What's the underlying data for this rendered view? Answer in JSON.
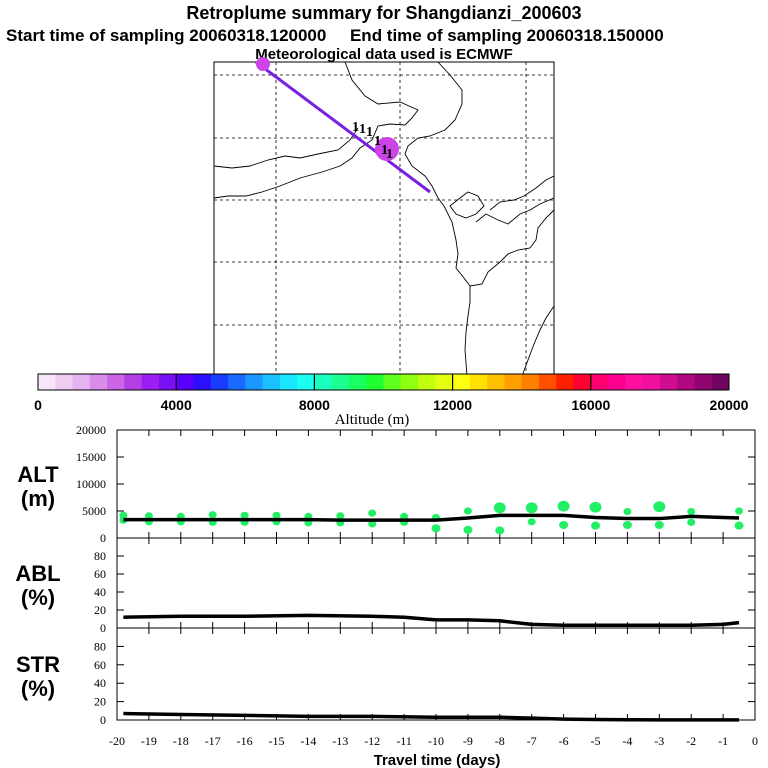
{
  "header": {
    "title": "Retroplume summary for Shangdianzi_200603",
    "start_time": "Start time of sampling 20060318.120000",
    "end_time": "End time of sampling 20060318.150000",
    "met_data": "Meteorological data used is ECMWF"
  },
  "chart_data": [
    {
      "type": "map",
      "name": "retroplume-map",
      "trajectory_color": "#7a1fe0",
      "marker_label": "1",
      "description_units": "plume centroid path toward station"
    },
    {
      "type": "colorbar",
      "name": "altitude-colorbar",
      "label": "Altitude (m)",
      "range": [
        0,
        20000
      ],
      "tick_labels": [
        "0",
        "4000",
        "8000",
        "12000",
        "16000",
        "20000"
      ],
      "colors": [
        "#f7e6f7",
        "#efcdf2",
        "#e5b3ef",
        "#d98de8",
        "#cc66e6",
        "#b23fe6",
        "#9a1ff0",
        "#7a0ff5",
        "#5a00ff",
        "#2a10ff",
        "#1a3cff",
        "#1a6aff",
        "#1a96ff",
        "#1ac0ff",
        "#1ae6ff",
        "#1afff0",
        "#1affc0",
        "#1aff90",
        "#1aff60",
        "#20ff30",
        "#60ff20",
        "#90ff10",
        "#c0ff10",
        "#e6ff10",
        "#ffff10",
        "#ffe000",
        "#ffc000",
        "#ffa000",
        "#ff8000",
        "#ff5000",
        "#ff2000",
        "#ff0030",
        "#ff0070",
        "#ff0090",
        "#ff10a0",
        "#ef10a0",
        "#d00c90",
        "#b00880",
        "#900670",
        "#700460"
      ]
    },
    {
      "type": "line",
      "name": "altitude-panel",
      "ylabel": "ALT\n(m)",
      "ylabel_lines": [
        "ALT",
        "(m)"
      ],
      "ylim": [
        0,
        20000
      ],
      "yticks": [
        "0",
        "5000",
        "10000",
        "15000",
        "20000"
      ],
      "x": [
        -19.8,
        -19,
        -18,
        -17,
        -16,
        -15,
        -14,
        -13,
        -12,
        -11,
        -10,
        -9,
        -8,
        -7,
        -6,
        -5,
        -4,
        -3,
        -2,
        -1,
        -0.5
      ],
      "y": [
        3400,
        3400,
        3400,
        3400,
        3400,
        3400,
        3400,
        3300,
        3300,
        3300,
        3300,
        3700,
        4200,
        4200,
        4200,
        3800,
        3600,
        3600,
        4000,
        3800,
        3700
      ],
      "points": [
        {
          "x": -19.8,
          "y": 3300
        },
        {
          "x": -19.8,
          "y": 4200
        },
        {
          "x": -19,
          "y": 3000
        },
        {
          "x": -19,
          "y": 4100
        },
        {
          "x": -18,
          "y": 3000
        },
        {
          "x": -18,
          "y": 4000
        },
        {
          "x": -17,
          "y": 2900
        },
        {
          "x": -17,
          "y": 4300
        },
        {
          "x": -16,
          "y": 2900
        },
        {
          "x": -16,
          "y": 4200
        },
        {
          "x": -15,
          "y": 3000
        },
        {
          "x": -15,
          "y": 4200
        },
        {
          "x": -14,
          "y": 2800
        },
        {
          "x": -14,
          "y": 4000
        },
        {
          "x": -13,
          "y": 2800
        },
        {
          "x": -13,
          "y": 4100
        },
        {
          "x": -12,
          "y": 2600
        },
        {
          "x": -12,
          "y": 4600
        },
        {
          "x": -11,
          "y": 2900
        },
        {
          "x": -11,
          "y": 4000
        },
        {
          "x": -10,
          "y": 1800
        },
        {
          "x": -10,
          "y": 3800
        },
        {
          "x": -9,
          "y": 1500
        },
        {
          "x": -9,
          "y": 5000
        },
        {
          "x": -8,
          "y": 1400
        },
        {
          "x": -8,
          "y": 5600
        },
        {
          "x": -7,
          "y": 3000
        },
        {
          "x": -7,
          "y": 5600
        },
        {
          "x": -6,
          "y": 2400
        },
        {
          "x": -6,
          "y": 5900
        },
        {
          "x": -5,
          "y": 2300
        },
        {
          "x": -5,
          "y": 5700
        },
        {
          "x": -4,
          "y": 2400
        },
        {
          "x": -4,
          "y": 4900
        },
        {
          "x": -3,
          "y": 2400
        },
        {
          "x": -3,
          "y": 5800
        },
        {
          "x": -2,
          "y": 2900
        },
        {
          "x": -2,
          "y": 4900
        },
        {
          "x": -0.5,
          "y": 2300
        },
        {
          "x": -0.5,
          "y": 5000
        }
      ],
      "point_color": "#22ee66"
    },
    {
      "type": "line",
      "name": "abl-panel",
      "ylabel": "ABL\n(%)",
      "ylabel_lines": [
        "ABL",
        "(%)"
      ],
      "ylim": [
        0,
        100
      ],
      "yticks": [
        "0",
        "20",
        "40",
        "60",
        "80"
      ],
      "x": [
        -19.8,
        -18,
        -16,
        -14,
        -12,
        -11,
        -10,
        -9,
        -8,
        -7,
        -6,
        -5,
        -4,
        -3,
        -2,
        -1,
        -0.5
      ],
      "y": [
        12,
        13,
        13,
        14,
        13,
        12,
        9,
        9,
        8,
        4,
        3,
        3,
        3,
        3,
        3,
        4,
        6
      ]
    },
    {
      "type": "line",
      "name": "str-panel",
      "ylabel": "STR\n(%)",
      "ylabel_lines": [
        "STR",
        "(%)"
      ],
      "ylim": [
        0,
        100
      ],
      "yticks": [
        "0",
        "20",
        "40",
        "60",
        "80"
      ],
      "x": [
        -19.8,
        -18,
        -16,
        -14,
        -12,
        -10,
        -8,
        -7,
        -6,
        -5,
        -4,
        -3,
        -2,
        -1,
        -0.5
      ],
      "y": [
        7,
        6,
        5,
        4,
        4,
        3,
        3,
        2,
        1,
        0.5,
        0.3,
        0.2,
        0.2,
        0.2,
        0.2
      ]
    }
  ],
  "xaxis": {
    "label": "Travel time (days)",
    "ticks": [
      "-20",
      "-19",
      "-18",
      "-17",
      "-16",
      "-15",
      "-14",
      "-13",
      "-12",
      "-11",
      "-10",
      "-9",
      "-8",
      "-7",
      "-6",
      "-5",
      "-4",
      "-3",
      "-2",
      "-1",
      "0"
    ]
  }
}
